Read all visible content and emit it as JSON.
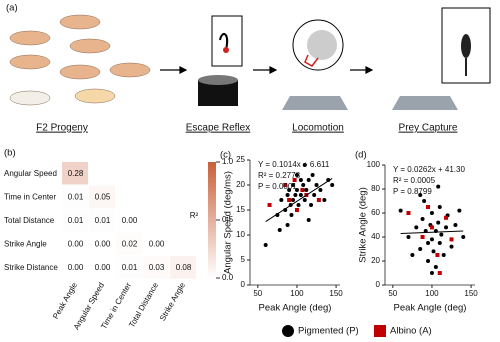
{
  "panel_a": {
    "label": "(a)",
    "steps": [
      "F2 Progeny",
      "Escape Reflex",
      "Locomotion",
      "Prey Capture"
    ]
  },
  "chart_data": [
    {
      "type": "heatmap",
      "label": "(b)",
      "rows": [
        "Angular Speed",
        "Time in Center",
        "Total Distance",
        "Strike Angle",
        "Strike Distance"
      ],
      "columns": [
        "Peak Angle",
        "Angular Speed",
        "Time in Center",
        "Total Distance",
        "Strike Angle"
      ],
      "values": [
        [
          0.28
        ],
        [
          0.01,
          0.05
        ],
        [
          0.01,
          0.01,
          0.0
        ],
        [
          0.0,
          0.0,
          0.02,
          0.0
        ],
        [
          0.0,
          0.0,
          0.01,
          0.03,
          0.08
        ]
      ],
      "value_labels": [
        [
          "0.28"
        ],
        [
          "0.01",
          "0.05"
        ],
        [
          "0.01",
          "0.01",
          "0.00"
        ],
        [
          "0.00",
          "0.00",
          "0.02",
          "0.00"
        ],
        [
          "0.00",
          "0.00",
          "0.01",
          "0.03",
          "0.08"
        ]
      ],
      "color": "#c8603a",
      "colorbar": {
        "label": "R²",
        "lim": [
          0,
          1
        ],
        "ticks": [
          {
            "value": 1,
            "label": "1.0"
          },
          {
            "value": 0.5,
            "label": "0.5"
          },
          {
            "value": 0,
            "label": "0.0"
          }
        ]
      }
    },
    {
      "type": "scatter",
      "label": "(c)",
      "xlabel": "Peak Angle (deg)",
      "ylabel": "Angular Speed (deg/ms)",
      "annotations": [
        "Y = 0.1014x + 6.611",
        "R² = 0.2778",
        "P = 0.0001"
      ],
      "fit": {
        "slope": 0.1014,
        "intercept": 6.611
      },
      "xlim": [
        40,
        155
      ],
      "xticks": [
        50,
        100,
        150
      ],
      "ylim": [
        0,
        25
      ],
      "yticks": [
        0,
        5,
        10,
        15,
        20,
        25
      ],
      "series": [
        {
          "name": "Pigmented (P)",
          "color": "#000000",
          "marker": "circle",
          "x": [
            60,
            75,
            80,
            85,
            88,
            90,
            92,
            95,
            95,
            98,
            100,
            100,
            102,
            105,
            105,
            108,
            110,
            110,
            112,
            115,
            118,
            120,
            122,
            125,
            130,
            135,
            140,
            145,
            88,
            93,
            78,
            115
          ],
          "values": [
            8,
            14,
            17,
            15,
            18,
            19,
            16,
            20,
            17,
            18,
            22,
            19,
            16,
            21,
            18,
            20,
            17,
            24,
            19,
            21,
            16,
            22,
            18,
            20,
            19,
            17,
            21,
            20,
            12,
            14,
            11,
            13
          ]
        },
        {
          "name": "Albino (A)",
          "color": "#c00000",
          "marker": "square",
          "x": [
            65,
            85,
            90,
            97,
            100,
            107,
            112,
            128
          ],
          "values": [
            16,
            20,
            17,
            21,
            15,
            19,
            18,
            17
          ]
        }
      ]
    },
    {
      "type": "scatter",
      "label": "(d)",
      "xlabel": "Peak Angle (deg)",
      "ylabel": "Strike Angle (deg)",
      "annotations": [
        "Y = 0.0262x + 41.30",
        "R² = 0.0005",
        "P = 0.8799"
      ],
      "fit": {
        "slope": 0.0262,
        "intercept": 41.3
      },
      "xlim": [
        40,
        155
      ],
      "xticks": [
        50,
        100,
        150
      ],
      "ylim": [
        0,
        100
      ],
      "yticks": [
        0,
        20,
        40,
        60,
        80,
        100
      ],
      "series": [
        {
          "name": "Pigmented (P)",
          "color": "#000000",
          "marker": "circle",
          "x": [
            60,
            70,
            75,
            80,
            85,
            88,
            90,
            92,
            95,
            95,
            98,
            100,
            100,
            102,
            105,
            105,
            108,
            110,
            110,
            112,
            115,
            118,
            120,
            125,
            130,
            135,
            140,
            100,
            85,
            108
          ],
          "values": [
            62,
            40,
            25,
            48,
            30,
            55,
            70,
            45,
            35,
            20,
            50,
            60,
            38,
            28,
            45,
            15,
            52,
            35,
            65,
            42,
            25,
            48,
            58,
            32,
            50,
            62,
            40,
            10,
            75,
            82
          ]
        },
        {
          "name": "Albino (A)",
          "color": "#c00000",
          "marker": "square",
          "x": [
            70,
            88,
            95,
            100,
            107,
            110,
            118,
            125
          ],
          "values": [
            60,
            40,
            65,
            48,
            25,
            10,
            56,
            38
          ]
        }
      ]
    }
  ]
}
